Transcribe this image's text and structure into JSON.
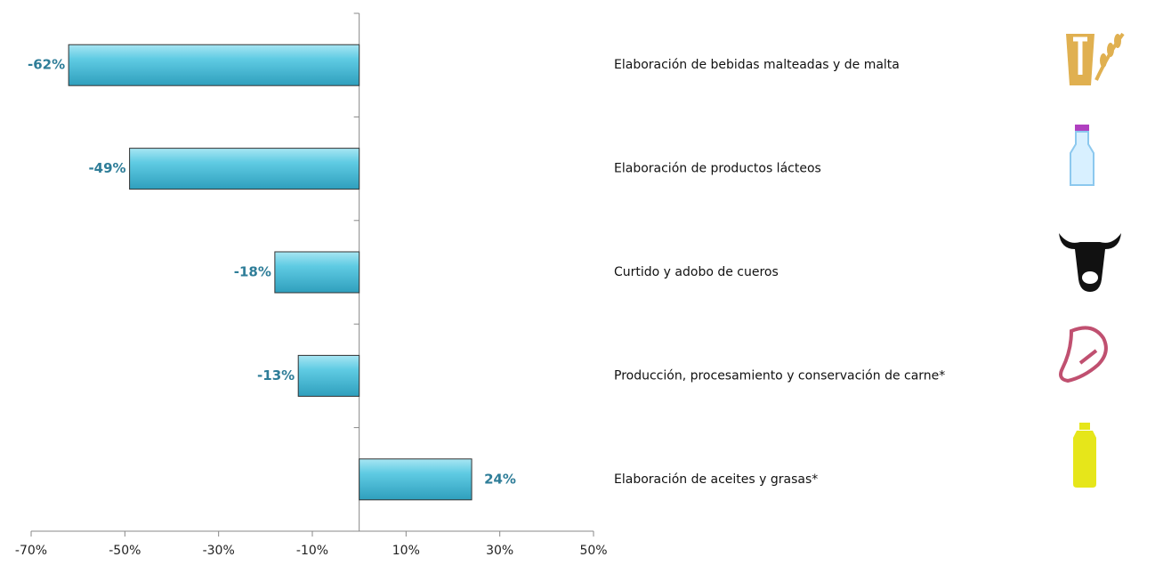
{
  "chart_data": {
    "type": "bar",
    "orientation": "horizontal",
    "categories": [
      "Elaboración de bebidas malteadas y de malta",
      "Elaboración de productos lácteos",
      "Curtido y adobo de cueros",
      "Producción, procesamiento y conservación de carne*",
      "Elaboración de aceites y grasas*"
    ],
    "values": [
      -62,
      -49,
      -18,
      -13,
      24
    ],
    "value_labels": [
      "-62%",
      "-49%",
      "-18%",
      "-13%",
      "24%"
    ],
    "color": "#4fc3df",
    "xlim": [
      -70,
      50
    ],
    "xticks": [
      {
        "value": -70,
        "label": "-70%"
      },
      {
        "value": -50,
        "label": "-50%"
      },
      {
        "value": -30,
        "label": "-30%"
      },
      {
        "value": -10,
        "label": "-10%"
      },
      {
        "value": 10,
        "label": "10%"
      },
      {
        "value": 30,
        "label": "30%"
      },
      {
        "value": 50,
        "label": "50%"
      }
    ]
  }
}
